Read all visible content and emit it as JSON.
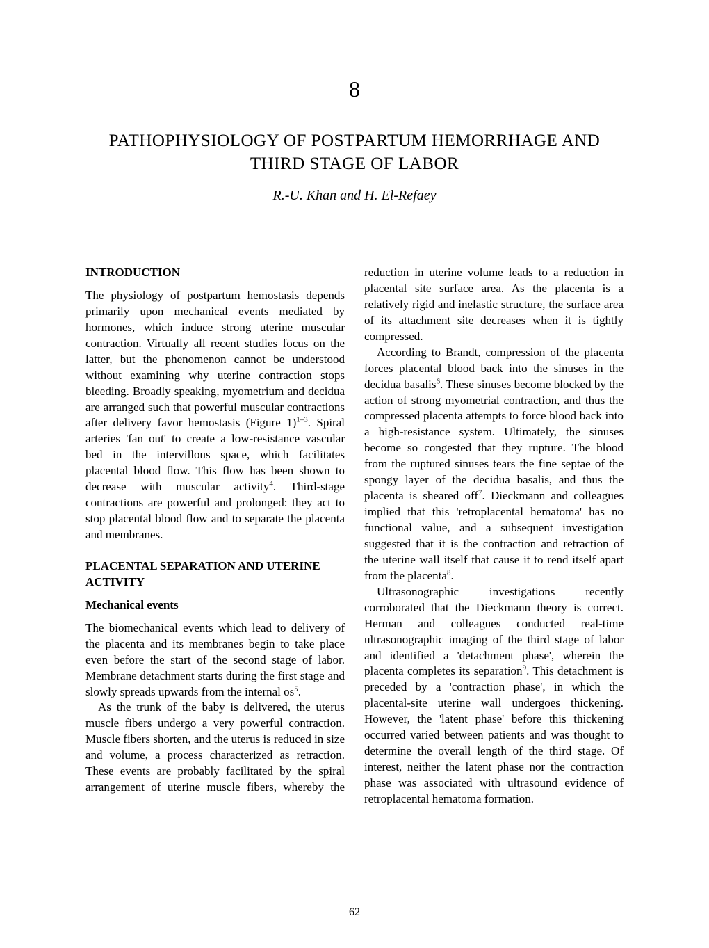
{
  "chapter_number": "8",
  "chapter_title": "PATHOPHYSIOLOGY OF POSTPARTUM HEMORRHAGE AND THIRD STAGE OF LABOR",
  "authors": "R.-U. Khan and H. El-Refaey",
  "page_number": "62",
  "headings": {
    "intro": "INTRODUCTION",
    "placental": "PLACENTAL SEPARATION AND UTERINE ACTIVITY",
    "mechanical": "Mechanical events"
  },
  "paragraphs": {
    "intro_p1_a": "The physiology of postpartum hemostasis depends primarily upon mechanical events mediated by hormones, which induce strong uterine muscular contraction. Virtually all recent studies focus on the latter, but the phenomenon cannot be understood without examining why uterine contraction stops bleeding. Broadly speaking, myometrium and decidua are arranged such that powerful muscular contractions after delivery favor hemostasis (Figure 1)",
    "intro_p1_sup1": "1–3",
    "intro_p1_b": ". Spiral arteries 'fan out' to create a low-resistance vascular bed in the intervillous space, which facilitates placental blood flow. This flow has been shown to decrease with muscular activity",
    "intro_p1_sup2": "4",
    "intro_p1_c": ". Third-stage contractions are powerful and prolonged: they act to stop placental blood flow and to separate the placenta and membranes.",
    "mech_p1_a": "The biomechanical events which lead to delivery of the placenta and its membranes begin to take place even before the start of the second stage of labor. Membrane detachment starts during the first stage and slowly spreads upwards from the internal os",
    "mech_p1_sup": "5",
    "mech_p1_b": ".",
    "mech_p2": "As the trunk of the baby is delivered, the uterus muscle fibers undergo a very powerful contraction. Muscle fibers shorten, and the uterus is reduced in size and volume, a process characterized as retraction. These events are probably facilitated by the spiral arrangement of uterine muscle fibers, whereby the reduction in uterine volume leads to a reduction in placental site surface area. As the placenta is a relatively rigid and inelastic structure, the surface area of its attachment site decreases when it is tightly compressed.",
    "mech_p3_a": "According to Brandt, compression of the placenta forces placental blood back into the sinuses in the decidua basalis",
    "mech_p3_sup1": "6",
    "mech_p3_b": ". These sinuses become blocked by the action of strong myometrial contraction, and thus the compressed placenta attempts to force blood back into a high-resistance system. Ultimately, the sinuses become so congested that they rupture. The blood from the ruptured sinuses tears the fine septae of the spongy layer of the decidua basalis, and thus the placenta is sheared off",
    "mech_p3_sup2": "7",
    "mech_p3_c": ". Dieckmann and colleagues implied that this 'retroplacental hematoma' has no functional value, and a subsequent investigation suggested that it is the contraction and retraction of the uterine wall itself that cause it to rend itself apart from the placenta",
    "mech_p3_sup3": "8",
    "mech_p3_d": ".",
    "mech_p4_a": "Ultrasonographic investigations recently corroborated that the Dieckmann theory is correct. Herman and colleagues conducted real-time ultrasonographic imaging of the third stage of labor and identified a 'detachment phase', wherein the placenta completes its separation",
    "mech_p4_sup": "9",
    "mech_p4_b": ". This detachment is preceded by a 'contraction phase', in which the placental-site uterine wall undergoes thickening. However, the 'latent phase' before this thickening occurred varied between patients and was thought to determine the overall length of the third stage. Of interest, neither the latent phase nor the contraction phase was associated with ultrasound evidence of retroplacental hematoma formation."
  }
}
